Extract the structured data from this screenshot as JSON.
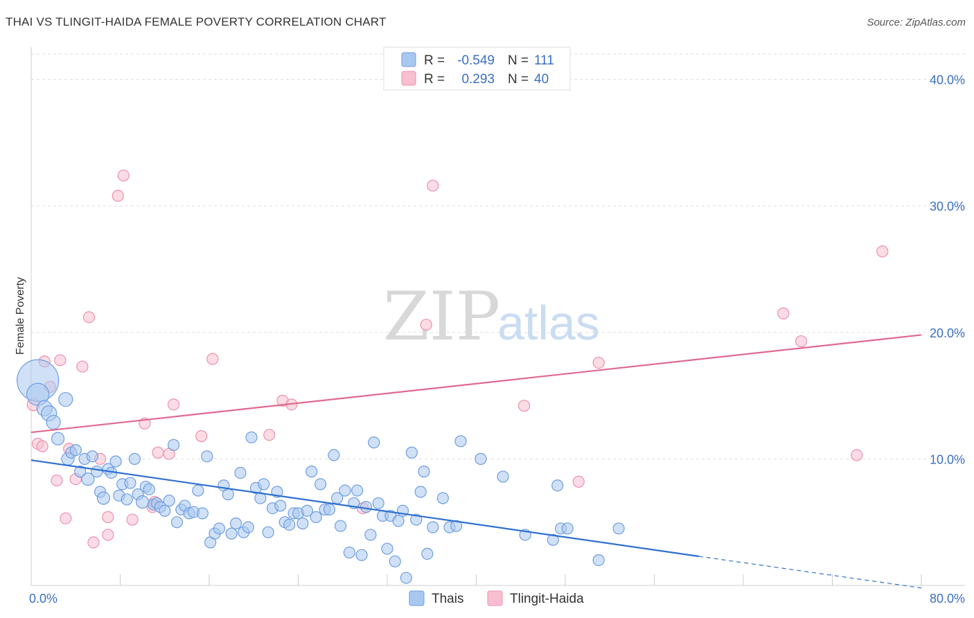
{
  "title": "THAI VS TLINGIT-HAIDA FEMALE POVERTY CORRELATION CHART",
  "source": "Source: ZipAtlas.com",
  "watermark": {
    "zip": "ZIP",
    "atlas": "atlas"
  },
  "colors": {
    "thais_fill": "#a9c8f0",
    "thais_stroke": "#6d9de0",
    "thais_line": "#2e6fd0",
    "tlingit_fill": "#f7bfd0",
    "tlingit_stroke": "#ec90ad",
    "tlingit_line": "#e0688f",
    "grid": "#dddddd",
    "tick_text": "#3a6fc4"
  },
  "legend": {
    "rows": [
      {
        "r_label": "R =",
        "r_value": "-0.549",
        "n_label": "N =",
        "n_value": "111"
      },
      {
        "r_label": "R =",
        "r_value": "0.293",
        "n_label": "N =",
        "n_value": "40"
      }
    ]
  },
  "bottom_legend": {
    "thais": "Thais",
    "tlingit": "Tlingit-Haida"
  },
  "chart_data": {
    "type": "scatter",
    "title": "THAI VS TLINGIT-HAIDA FEMALE POVERTY CORRELATION CHART",
    "xlabel": "",
    "ylabel": "Female Poverty",
    "xlim": [
      0,
      80
    ],
    "ylim": [
      0,
      42
    ],
    "x_tick_labels": [
      "0.0%",
      "80.0%"
    ],
    "y_ticks": [
      10,
      20,
      30,
      40
    ],
    "y_tick_labels": [
      "10.0%",
      "20.0%",
      "30.0%",
      "40.0%"
    ],
    "grid": true,
    "legend_position": "top-center",
    "series": [
      {
        "name": "Thais",
        "trend": {
          "x0": 0,
          "y0": 9.9,
          "x1": 60,
          "y1": 2.3,
          "dashed_to_x": 80,
          "dashed_to_y": -0.2
        },
        "points": [
          [
            0.6,
            16.2,
            30
          ],
          [
            0.6,
            15.1,
            16
          ],
          [
            1.2,
            14.0,
            11
          ],
          [
            1.6,
            13.6,
            11
          ],
          [
            2.0,
            12.9,
            10
          ],
          [
            2.4,
            11.6,
            9
          ],
          [
            3.1,
            14.7,
            10
          ],
          [
            3.3,
            10.0,
            9
          ],
          [
            3.6,
            10.5,
            8
          ],
          [
            4.0,
            10.7,
            8
          ],
          [
            4.4,
            9.0,
            8
          ],
          [
            4.8,
            10.0,
            8
          ],
          [
            5.1,
            8.4,
            9
          ],
          [
            5.5,
            10.2,
            8
          ],
          [
            5.9,
            9.0,
            8
          ],
          [
            6.2,
            7.4,
            8
          ],
          [
            6.5,
            6.9,
            9
          ],
          [
            6.9,
            9.2,
            8
          ],
          [
            7.2,
            8.9,
            8
          ],
          [
            7.6,
            9.8,
            8
          ],
          [
            7.9,
            7.1,
            8
          ],
          [
            8.2,
            8.0,
            8
          ],
          [
            8.6,
            6.8,
            8
          ],
          [
            8.9,
            8.1,
            8
          ],
          [
            9.3,
            10.0,
            8
          ],
          [
            9.6,
            7.2,
            8
          ],
          [
            10.0,
            6.6,
            9
          ],
          [
            10.3,
            7.8,
            8
          ],
          [
            10.6,
            7.6,
            8
          ],
          [
            11.0,
            6.4,
            8
          ],
          [
            11.3,
            6.5,
            8
          ],
          [
            11.6,
            6.2,
            8
          ],
          [
            12.0,
            5.9,
            8
          ],
          [
            12.4,
            6.7,
            8
          ],
          [
            12.8,
            11.1,
            8
          ],
          [
            13.1,
            5.0,
            8
          ],
          [
            13.5,
            6.0,
            8
          ],
          [
            13.8,
            6.3,
            8
          ],
          [
            14.2,
            5.7,
            8
          ],
          [
            14.6,
            5.8,
            8
          ],
          [
            15.0,
            7.5,
            8
          ],
          [
            15.4,
            5.7,
            8
          ],
          [
            15.8,
            10.2,
            8
          ],
          [
            16.1,
            3.4,
            8
          ],
          [
            16.5,
            4.1,
            8
          ],
          [
            16.9,
            4.5,
            8
          ],
          [
            17.3,
            7.9,
            8
          ],
          [
            17.7,
            7.2,
            8
          ],
          [
            18.0,
            4.1,
            8
          ],
          [
            18.4,
            4.9,
            8
          ],
          [
            18.8,
            8.9,
            8
          ],
          [
            19.1,
            4.2,
            8
          ],
          [
            19.5,
            4.6,
            8
          ],
          [
            19.8,
            11.7,
            8
          ],
          [
            20.2,
            7.7,
            8
          ],
          [
            20.6,
            6.9,
            8
          ],
          [
            20.9,
            8.0,
            8
          ],
          [
            21.3,
            4.2,
            8
          ],
          [
            21.7,
            6.1,
            8
          ],
          [
            22.1,
            7.4,
            8
          ],
          [
            22.4,
            6.3,
            8
          ],
          [
            22.8,
            5.0,
            8
          ],
          [
            23.2,
            4.8,
            8
          ],
          [
            23.6,
            5.7,
            8
          ],
          [
            24.0,
            5.7,
            8
          ],
          [
            24.4,
            4.9,
            8
          ],
          [
            24.8,
            5.9,
            8
          ],
          [
            25.2,
            9.0,
            8
          ],
          [
            25.6,
            5.4,
            8
          ],
          [
            26.0,
            8.0,
            8
          ],
          [
            26.4,
            6.0,
            8
          ],
          [
            26.8,
            6.0,
            8
          ],
          [
            27.2,
            10.3,
            8
          ],
          [
            27.5,
            6.9,
            8
          ],
          [
            27.8,
            4.7,
            8
          ],
          [
            28.2,
            7.5,
            8
          ],
          [
            28.6,
            2.6,
            8
          ],
          [
            29.0,
            6.5,
            8
          ],
          [
            29.3,
            7.5,
            8
          ],
          [
            29.7,
            2.4,
            8
          ],
          [
            30.1,
            6.2,
            8
          ],
          [
            30.5,
            4.0,
            8
          ],
          [
            30.8,
            11.3,
            8
          ],
          [
            31.2,
            6.5,
            8
          ],
          [
            31.6,
            5.5,
            8
          ],
          [
            32.0,
            2.9,
            8
          ],
          [
            32.3,
            5.5,
            8
          ],
          [
            32.7,
            1.9,
            8
          ],
          [
            33.0,
            5.1,
            8
          ],
          [
            33.4,
            5.9,
            8
          ],
          [
            33.7,
            0.6,
            8
          ],
          [
            34.2,
            10.5,
            8
          ],
          [
            34.6,
            5.2,
            8
          ],
          [
            35.0,
            7.4,
            8
          ],
          [
            35.3,
            9.0,
            8
          ],
          [
            35.6,
            2.5,
            8
          ],
          [
            36.1,
            4.6,
            8
          ],
          [
            37.0,
            6.9,
            8
          ],
          [
            37.6,
            4.6,
            8
          ],
          [
            38.2,
            4.7,
            8
          ],
          [
            38.6,
            11.4,
            8
          ],
          [
            40.4,
            10.0,
            8
          ],
          [
            42.4,
            8.6,
            8
          ],
          [
            44.4,
            4.0,
            8
          ],
          [
            46.9,
            3.6,
            8
          ],
          [
            47.3,
            7.9,
            8
          ],
          [
            47.6,
            4.5,
            8
          ],
          [
            48.2,
            4.5,
            8
          ],
          [
            51.0,
            2.0,
            8
          ],
          [
            52.8,
            4.5,
            8
          ]
        ]
      },
      {
        "name": "Tlingit-Haida",
        "trend": {
          "x0": 0,
          "y0": 12.1,
          "x1": 80,
          "y1": 19.8
        },
        "points": [
          [
            0.2,
            14.3,
            9
          ],
          [
            0.6,
            11.2,
            8
          ],
          [
            1.0,
            11.0,
            8
          ],
          [
            1.2,
            17.7,
            8
          ],
          [
            1.7,
            15.7,
            8
          ],
          [
            2.3,
            8.3,
            8
          ],
          [
            2.6,
            17.8,
            8
          ],
          [
            3.1,
            5.3,
            8
          ],
          [
            3.4,
            10.8,
            8
          ],
          [
            4.0,
            8.4,
            8
          ],
          [
            4.6,
            17.3,
            8
          ],
          [
            5.2,
            21.2,
            8
          ],
          [
            5.6,
            3.4,
            8
          ],
          [
            6.2,
            10.0,
            8
          ],
          [
            6.9,
            4.0,
            8
          ],
          [
            6.9,
            5.4,
            8
          ],
          [
            7.8,
            30.8,
            8
          ],
          [
            8.3,
            32.4,
            8
          ],
          [
            9.1,
            5.2,
            8
          ],
          [
            10.2,
            12.8,
            8
          ],
          [
            10.9,
            6.2,
            8
          ],
          [
            11.1,
            6.6,
            8
          ],
          [
            11.4,
            10.5,
            8
          ],
          [
            12.4,
            10.4,
            8
          ],
          [
            12.8,
            14.3,
            8
          ],
          [
            15.3,
            11.8,
            8
          ],
          [
            16.3,
            17.9,
            8
          ],
          [
            21.4,
            11.9,
            8
          ],
          [
            22.6,
            14.6,
            8
          ],
          [
            23.4,
            14.3,
            8
          ],
          [
            29.8,
            6.1,
            8
          ],
          [
            35.5,
            20.6,
            8
          ],
          [
            36.1,
            31.6,
            8
          ],
          [
            44.3,
            14.2,
            8
          ],
          [
            49.2,
            8.2,
            8
          ],
          [
            51.0,
            17.6,
            8
          ],
          [
            67.6,
            21.5,
            8
          ],
          [
            69.2,
            19.3,
            8
          ],
          [
            74.2,
            10.3,
            8
          ],
          [
            76.5,
            26.4,
            8
          ]
        ]
      }
    ]
  }
}
